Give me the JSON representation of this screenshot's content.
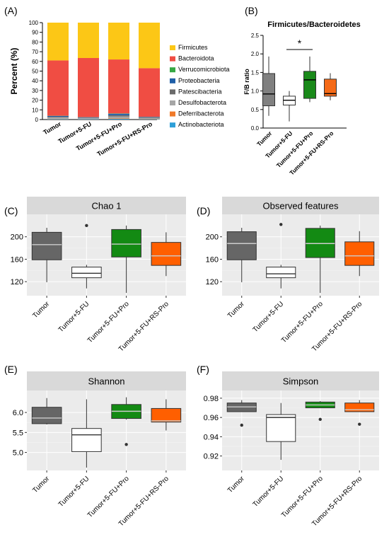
{
  "panels": {
    "A": "(A)",
    "B": "(B)",
    "C": "(C)",
    "D": "(D)",
    "E": "(E)",
    "F": "(F)"
  },
  "groups": [
    "Tumor",
    "Tumor+5-FU",
    "Tumor+5-FU+Pro",
    "Tumor+5-FU+RS-Pro"
  ],
  "chart_data": [
    {
      "id": "A",
      "type": "bar",
      "stacked": true,
      "ylabel": "Percent (%)",
      "ylim": [
        0,
        100
      ],
      "yticks": [
        0,
        10,
        20,
        30,
        40,
        50,
        60,
        70,
        80,
        90,
        100
      ],
      "categories": [
        "Tumor",
        "Tumor+5-FU",
        "Tumor+5-FU+Pro",
        "Tumor+5-FU+RS-Pro"
      ],
      "legend_position": "right",
      "series": [
        {
          "name": "Actinobacteriota",
          "color": "#2e9fd8",
          "values": [
            0.5,
            0.4,
            0.7,
            0.4
          ]
        },
        {
          "name": "Deferribacterota",
          "color": "#f07a2a",
          "values": [
            0.3,
            0.2,
            0.6,
            0.3
          ]
        },
        {
          "name": "Desulfobacterota",
          "color": "#a6a6a6",
          "values": [
            1.5,
            1.0,
            2.0,
            1.0
          ]
        },
        {
          "name": "Patescibacteria",
          "color": "#6a6a6a",
          "values": [
            0.6,
            0.3,
            1.2,
            0.5
          ]
        },
        {
          "name": "Proteobacteria",
          "color": "#1f5fa8",
          "values": [
            0.8,
            0.5,
            1.5,
            0.5
          ]
        },
        {
          "name": "Verrucomicrobiota",
          "color": "#36a844",
          "values": [
            0.2,
            0.1,
            0.3,
            0.1
          ]
        },
        {
          "name": "Bacteroidota",
          "color": "#f04d43",
          "values": [
            57.1,
            61.0,
            55.7,
            50.2
          ]
        },
        {
          "name": "Firmicutes",
          "color": "#fcc716",
          "values": [
            39.0,
            36.5,
            38.0,
            47.0
          ]
        }
      ]
    },
    {
      "id": "B",
      "type": "box",
      "title": "Firmicutes/Bacteroidetes",
      "ylabel": "F/B ratio",
      "ylim": [
        0,
        2.5
      ],
      "yticks": [
        0.0,
        0.5,
        1.0,
        1.5,
        2.0,
        2.5
      ],
      "categories": [
        "Tumor",
        "Tumor+5-FU",
        "Tumor+5-FU+Pro",
        "Tumor+5-FU+RS-Pro"
      ],
      "colors": [
        "#808080",
        "#ffffff",
        "#1a8a1a",
        "#f56a18"
      ],
      "boxes": [
        {
          "whislo": 0.33,
          "q1": 0.6,
          "med": 0.92,
          "q3": 1.47,
          "whishi": 1.93
        },
        {
          "whislo": 0.18,
          "q1": 0.62,
          "med": 0.75,
          "q3": 0.86,
          "whishi": 1.0
        },
        {
          "whislo": 0.7,
          "q1": 0.8,
          "med": 1.3,
          "q3": 1.53,
          "whishi": 1.93
        },
        {
          "whislo": 0.75,
          "q1": 0.86,
          "med": 0.93,
          "q3": 1.32,
          "whishi": 1.48
        }
      ],
      "significance": {
        "between": [
          1,
          2
        ],
        "label": "*"
      }
    },
    {
      "id": "C",
      "type": "box",
      "title": "Chao 1",
      "ylim": [
        95,
        240
      ],
      "yticks": [
        120,
        160,
        200
      ],
      "categories": [
        "Tumor",
        "Tumor+5-FU",
        "Tumor+5-FU+Pro",
        "Tumor+5-FU+RS-Pro"
      ],
      "colors": [
        "#666666",
        "#ffffff",
        "#138a13",
        "#ff5f00"
      ],
      "boxes": [
        {
          "whislo": 119,
          "q1": 159,
          "med": 186,
          "q3": 208,
          "whishi": 216
        },
        {
          "whislo": 108,
          "q1": 127,
          "med": 135,
          "q3": 146,
          "whishi": 150,
          "fliers": [
            220
          ]
        },
        {
          "whislo": 100,
          "q1": 164,
          "med": 187,
          "q3": 213,
          "whishi": 220
        },
        {
          "whislo": 130,
          "q1": 149,
          "med": 166,
          "q3": 190,
          "whishi": 208
        }
      ]
    },
    {
      "id": "D",
      "type": "box",
      "title": "Observed features",
      "ylim": [
        95,
        240
      ],
      "yticks": [
        120,
        160,
        200
      ],
      "categories": [
        "Tumor",
        "Tumor+5-FU",
        "Tumor+5-FU+Pro",
        "Tumor+5-FU+RS-Pro"
      ],
      "colors": [
        "#666666",
        "#ffffff",
        "#138a13",
        "#ff5f00"
      ],
      "boxes": [
        {
          "whislo": 119,
          "q1": 159,
          "med": 188,
          "q3": 209,
          "whishi": 216
        },
        {
          "whislo": 108,
          "q1": 127,
          "med": 134,
          "q3": 146,
          "whishi": 150,
          "fliers": [
            222
          ]
        },
        {
          "whislo": 100,
          "q1": 163,
          "med": 188,
          "q3": 215,
          "whishi": 220
        },
        {
          "whislo": 130,
          "q1": 149,
          "med": 166,
          "q3": 191,
          "whishi": 210
        }
      ]
    },
    {
      "id": "E",
      "type": "box",
      "title": "Shannon",
      "ylim": [
        4.55,
        6.55
      ],
      "yticks": [
        5.0,
        5.5,
        6.0
      ],
      "categories": [
        "Tumor",
        "Tumor+5-FU",
        "Tumor+5-FU+Pro",
        "Tumor+5-FU+RS-Pro"
      ],
      "colors": [
        "#666666",
        "#ffffff",
        "#138a13",
        "#ff5f00"
      ],
      "boxes": [
        {
          "whislo": 5.7,
          "q1": 5.72,
          "med": 5.86,
          "q3": 6.13,
          "whishi": 6.36
        },
        {
          "whislo": 4.62,
          "q1": 5.02,
          "med": 5.44,
          "q3": 5.6,
          "whishi": 6.33
        },
        {
          "whislo": 5.82,
          "q1": 5.85,
          "med": 6.03,
          "q3": 6.2,
          "whishi": 6.38,
          "fliers": [
            5.2
          ]
        },
        {
          "whislo": 5.55,
          "q1": 5.76,
          "med": 5.79,
          "q3": 6.1,
          "whishi": 6.33
        }
      ]
    },
    {
      "id": "F",
      "type": "box",
      "title": "Simpson",
      "ylim": [
        0.905,
        0.988
      ],
      "yticks": [
        0.92,
        0.94,
        0.96,
        0.98
      ],
      "categories": [
        "Tumor",
        "Tumor+5-FU",
        "Tumor+5-FU+Pro",
        "Tumor+5-FU+RS-Pro"
      ],
      "colors": [
        "#666666",
        "#ffffff",
        "#138a13",
        "#ff5f00"
      ],
      "boxes": [
        {
          "whislo": 0.966,
          "q1": 0.966,
          "med": 0.971,
          "q3": 0.975,
          "whishi": 0.978,
          "fliers": [
            0.952
          ]
        },
        {
          "whislo": 0.916,
          "q1": 0.935,
          "med": 0.96,
          "q3": 0.963,
          "whishi": 0.975
        },
        {
          "whislo": 0.97,
          "q1": 0.97,
          "med": 0.973,
          "q3": 0.976,
          "whishi": 0.977,
          "fliers": [
            0.958
          ]
        },
        {
          "whislo": 0.966,
          "q1": 0.966,
          "med": 0.968,
          "q3": 0.975,
          "whishi": 0.978,
          "fliers": [
            0.953
          ]
        }
      ]
    }
  ]
}
